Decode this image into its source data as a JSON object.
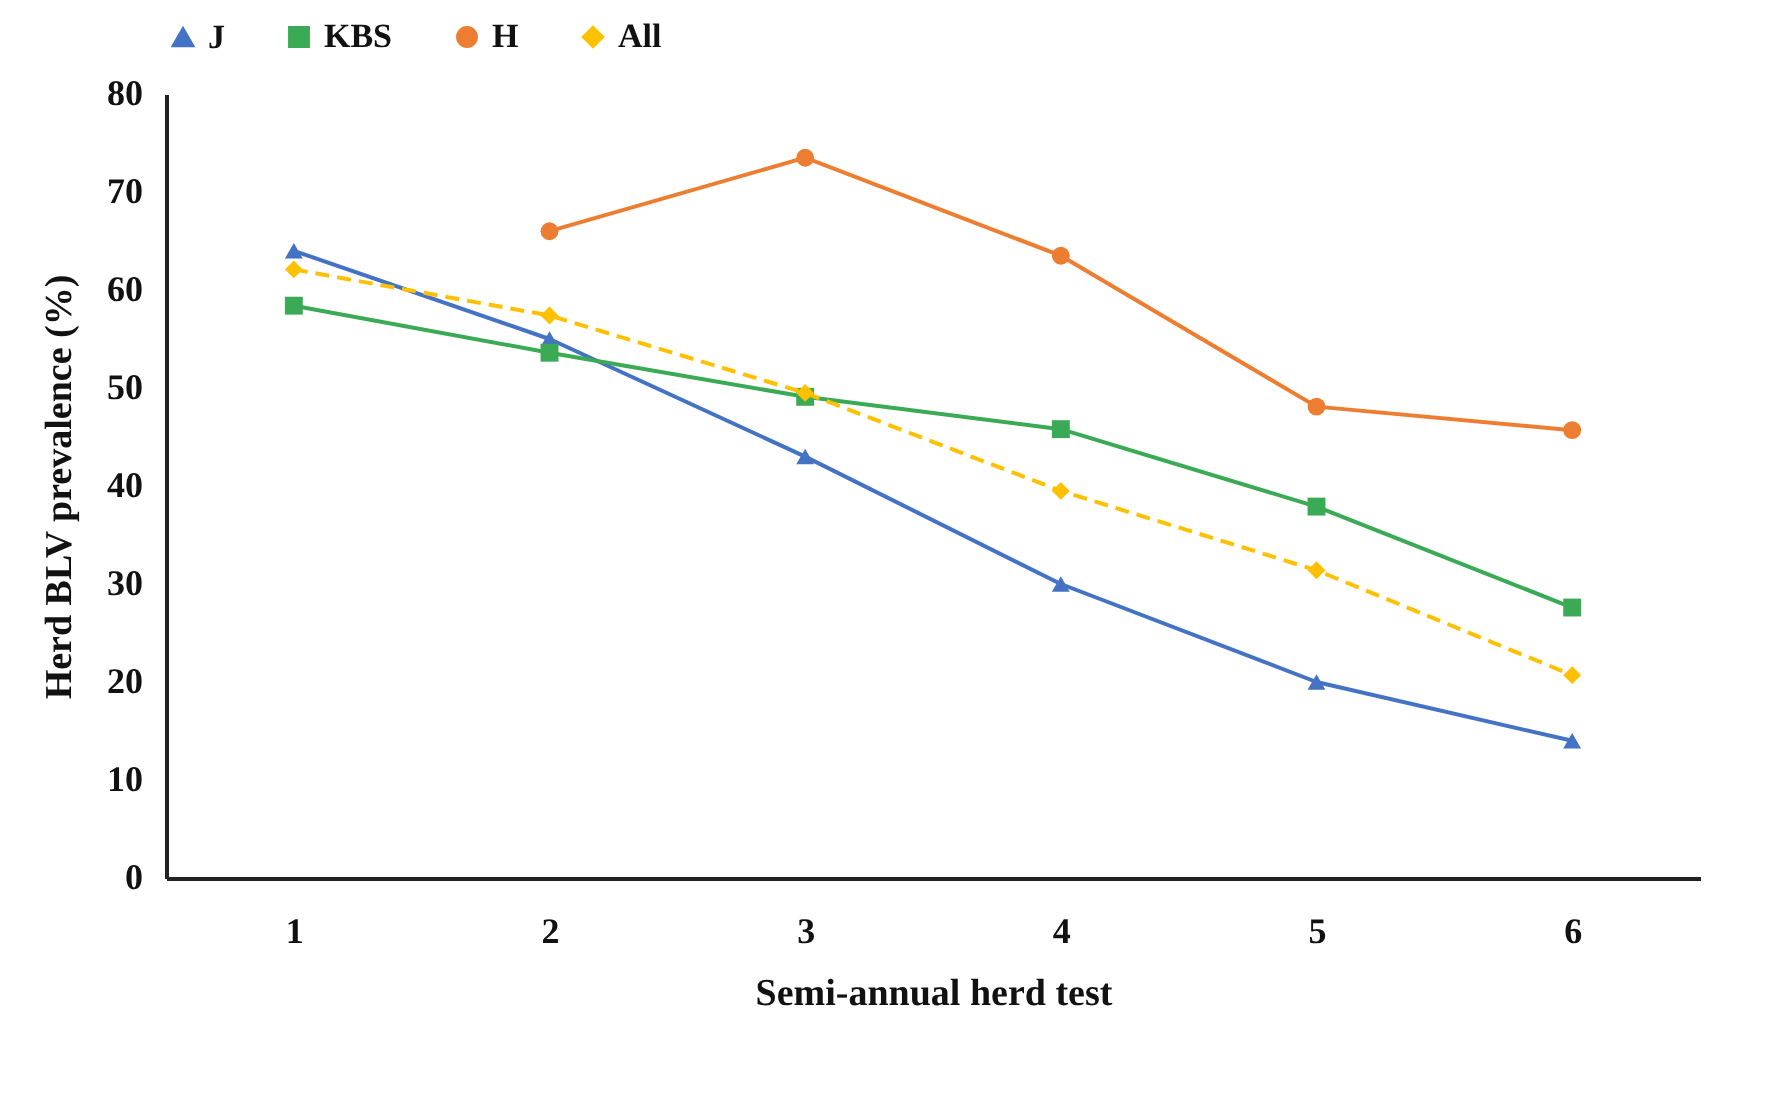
{
  "chart_data": {
    "type": "line",
    "xlabel": "Semi-annual herd test",
    "ylabel": "Herd BLV prevalence (%)",
    "categories": [
      "1",
      "2",
      "3",
      "4",
      "5",
      "6"
    ],
    "series": [
      {
        "name": "J",
        "color": "#4472c4",
        "marker": "triangle",
        "line_style": "solid",
        "values": [
          64,
          55,
          43,
          30,
          20,
          14
        ]
      },
      {
        "name": "KBS",
        "color": "#3aaa55",
        "marker": "square",
        "line_style": "solid",
        "values": [
          58.4,
          53.6,
          49.1,
          45.8,
          37.9,
          27.6
        ]
      },
      {
        "name": "H",
        "color": "#ed7d31",
        "marker": "circle",
        "line_style": "solid",
        "values": [
          null,
          66,
          73.5,
          63.5,
          48.1,
          45.7
        ]
      },
      {
        "name": "All",
        "color": "#ffc000",
        "marker": "diamond",
        "line_style": "dashed",
        "values": [
          62.1,
          57.4,
          49.5,
          39.5,
          31.4,
          20.7
        ]
      }
    ],
    "ylim": [
      0,
      80
    ],
    "yticks": [
      0,
      10,
      20,
      30,
      40,
      50,
      60,
      70,
      80
    ],
    "grid": false,
    "legend": "top"
  }
}
